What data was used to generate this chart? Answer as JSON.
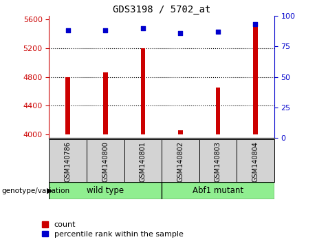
{
  "title": "GDS3198 / 5702_at",
  "samples": [
    "GSM140786",
    "GSM140800",
    "GSM140801",
    "GSM140802",
    "GSM140803",
    "GSM140804"
  ],
  "counts": [
    4800,
    4860,
    5200,
    4060,
    4650,
    5560
  ],
  "percentile_ranks": [
    88,
    88,
    90,
    86,
    87,
    93
  ],
  "ylim_left": [
    3950,
    5650
  ],
  "ylim_right": [
    0,
    100
  ],
  "yticks_left": [
    4000,
    4400,
    4800,
    5200,
    5600
  ],
  "yticks_right": [
    0,
    25,
    50,
    75,
    100
  ],
  "bar_color": "#cc0000",
  "dot_color": "#0000cc",
  "grid_lines": [
    4400,
    4800,
    5200
  ],
  "legend_items": [
    "count",
    "percentile rank within the sample"
  ],
  "legend_colors": [
    "#cc0000",
    "#0000cc"
  ],
  "bar_width": 0.12,
  "sample_box_color": "#d3d3d3",
  "wt_color": "#90ee90",
  "abf_color": "#90ee90",
  "wt_label": "wild type",
  "abf_label": "Abf1 mutant",
  "wt_range": [
    0,
    3
  ],
  "abf_range": [
    3,
    6
  ]
}
